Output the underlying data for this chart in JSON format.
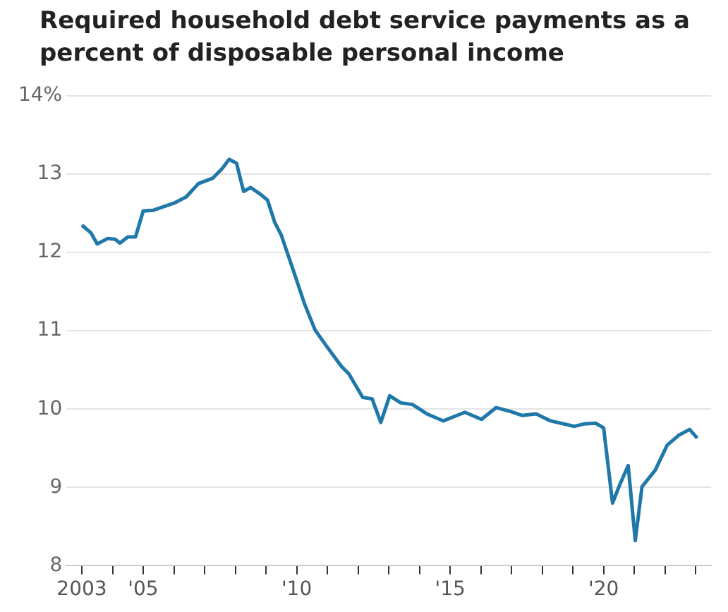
{
  "chart_data": {
    "type": "line",
    "title": "Required household debt service payments as a percent of disposable personal income",
    "x": [
      2003.0,
      2003.3,
      2003.5,
      2003.85,
      2004.08,
      2004.24,
      2004.5,
      2004.75,
      2005.0,
      2005.33,
      2006.0,
      2006.4,
      2006.8,
      2007.27,
      2007.57,
      2007.8,
      2008.04,
      2008.27,
      2008.5,
      2008.8,
      2009.05,
      2009.28,
      2009.5,
      2009.9,
      2010.25,
      2010.6,
      2010.98,
      2011.45,
      2011.7,
      2012.15,
      2012.46,
      2012.74,
      2013.03,
      2013.39,
      2013.77,
      2014.24,
      2014.78,
      2015.48,
      2016.02,
      2016.5,
      2016.97,
      2017.34,
      2017.8,
      2018.27,
      2019.05,
      2019.35,
      2019.74,
      2020.0,
      2020.29,
      2020.52,
      2020.8,
      2021.03,
      2021.25,
      2021.68,
      2022.07,
      2022.46,
      2022.8,
      2023.05
    ],
    "series": [
      {
        "color": "#1f78a8",
        "values": [
          12.35,
          12.25,
          12.11,
          12.18,
          12.17,
          12.12,
          12.2,
          12.2,
          12.53,
          12.54,
          12.63,
          12.71,
          12.88,
          12.95,
          13.07,
          13.19,
          13.14,
          12.78,
          12.83,
          12.75,
          12.67,
          12.39,
          12.22,
          11.76,
          11.35,
          11.01,
          10.8,
          10.55,
          10.45,
          10.15,
          10.13,
          9.83,
          10.17,
          10.08,
          10.06,
          9.94,
          9.85,
          9.96,
          9.87,
          10.02,
          9.97,
          9.92,
          9.94,
          9.85,
          9.78,
          9.81,
          9.82,
          9.76,
          8.8,
          9.03,
          9.28,
          8.32,
          9.01,
          9.22,
          9.54,
          9.67,
          9.74,
          9.63
        ]
      }
    ],
    "xlim": [
      2002.5,
      2023.5
    ],
    "xticks": [
      {
        "value": 2003,
        "label": "2003"
      },
      {
        "value": 2004,
        "label": null
      },
      {
        "value": 2005,
        "label": "'05"
      },
      {
        "value": 2006,
        "label": null
      },
      {
        "value": 2007,
        "label": null
      },
      {
        "value": 2008,
        "label": null
      },
      {
        "value": 2009,
        "label": null
      },
      {
        "value": 2010,
        "label": "'10"
      },
      {
        "value": 2011,
        "label": null
      },
      {
        "value": 2012,
        "label": null
      },
      {
        "value": 2013,
        "label": null
      },
      {
        "value": 2014,
        "label": null
      },
      {
        "value": 2015,
        "label": "'15"
      },
      {
        "value": 2016,
        "label": null
      },
      {
        "value": 2017,
        "label": null
      },
      {
        "value": 2018,
        "label": null
      },
      {
        "value": 2019,
        "label": null
      },
      {
        "value": 2020,
        "label": "'20"
      },
      {
        "value": 2021,
        "label": null
      },
      {
        "value": 2022,
        "label": null
      },
      {
        "value": 2023,
        "label": null
      }
    ],
    "ylim": [
      8,
      14
    ],
    "yticks": [
      8,
      9,
      10,
      11,
      12,
      13,
      {
        "value": 14,
        "label": "14%"
      }
    ],
    "grid": "y",
    "legend": false,
    "marker": "none",
    "line_style": "solid"
  }
}
